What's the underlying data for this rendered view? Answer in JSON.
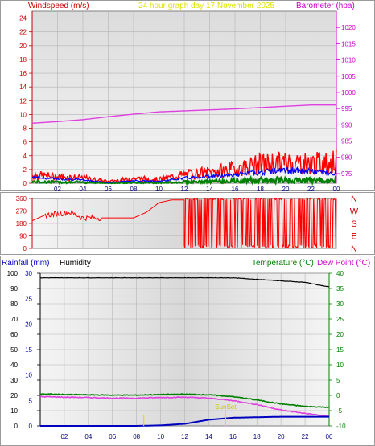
{
  "header": {
    "left": "Windspeed (m/s)",
    "center": "24 hour graph day   17 November 2025",
    "right": "Barometer (hpa)"
  },
  "colors": {
    "wind": "#ff0000",
    "gust": "#ff0000",
    "avgwind": "#0000ff",
    "baro": "#e040e0",
    "dir": "#ff0000",
    "hum": "#000000",
    "temp": "#008000",
    "dew": "#e040e0",
    "rain": "#0000c0",
    "sun": "#e0e000",
    "header_left": "#cc0000",
    "header_center": "#e0e000",
    "header_right": "#cc00cc",
    "rain_label": "#0000c0",
    "hum_label": "#000000",
    "temp_label": "#008000",
    "dew_label": "#cc00cc"
  },
  "time_ticks": [
    "02",
    "04",
    "06",
    "08",
    "10",
    "12",
    "14",
    "16",
    "18",
    "20",
    "22",
    "00"
  ],
  "compass": [
    "N",
    "W",
    "S",
    "E",
    "N"
  ],
  "bottom_labels": {
    "rainfall": "Rainfall (mm)",
    "humidity": "Humidity",
    "temperature": "Temperature (°C)",
    "dewpoint": "Dew Point (°C)",
    "sunset": "SunSet"
  },
  "chart_data": [
    {
      "type": "line",
      "title": "24 hour graph day   17 November 2025",
      "ylabel": "Windspeed (m/s)",
      "y2label": "Barometer (hpa)",
      "ylim": [
        0,
        25
      ],
      "yticks": [
        "0",
        "2",
        "4",
        "6",
        "8",
        "10",
        "12",
        "14",
        "16",
        "18",
        "20",
        "22",
        "24"
      ],
      "y2lim": [
        972,
        1025
      ],
      "y2ticks": [
        "975",
        "980",
        "985",
        "990",
        "995",
        "1000",
        "1005",
        "1010",
        "1015",
        "1020"
      ],
      "x_hours": [
        0,
        2,
        4,
        6,
        8,
        10,
        12,
        14,
        16,
        18,
        20,
        22,
        24
      ],
      "series": [
        {
          "values_wind_gust": [
            1.5,
            1.2,
            1.0,
            0.3,
            0.9,
            0.7,
            1.6,
            2.0,
            2.6,
            3.5,
            3.8,
            3.6,
            3.9
          ]
        },
        {
          "values_wind_avg": [
            0.9,
            0.7,
            0.5,
            0.1,
            0.4,
            0.3,
            0.8,
            1.1,
            1.3,
            1.7,
            2.0,
            1.8,
            1.6
          ]
        },
        {
          "values_baro": [
            990.5,
            991.0,
            991.6,
            992.5,
            993.3,
            994.0,
            994.3,
            994.6,
            994.9,
            995.3,
            995.7,
            996.1,
            996.1
          ]
        }
      ],
      "grid": true
    },
    {
      "type": "scatter",
      "title": "",
      "ylabel": "",
      "ylim": [
        0,
        360
      ],
      "yticks": [
        "0",
        "90",
        "180",
        "270",
        "360"
      ],
      "x_hours": [
        0,
        1,
        2,
        3,
        4,
        5,
        6,
        7,
        8,
        9,
        10,
        11,
        12
      ],
      "series": [
        {
          "values_wind_dir": [
            200,
            240,
            250,
            260,
            220,
            220,
            220,
            220,
            220,
            260,
            330,
            350,
            350
          ]
        }
      ],
      "note_after_12h": "direction varies between 0 and 360",
      "grid": true
    },
    {
      "type": "line",
      "title": "",
      "ylabel_left": "Rainfall (mm)",
      "ylabel_left2": "Humidity",
      "ylabel_right": "Temperature (°C)",
      "ylabel_right2": "Dew Point (°C)",
      "rain_ticks": [
        "0",
        "5",
        "10",
        "15",
        "20",
        "25",
        "30"
      ],
      "rain_lim": [
        0,
        30
      ],
      "hum_ticks": [
        "0",
        "10",
        "20",
        "30",
        "40",
        "50",
        "60",
        "70",
        "80",
        "90",
        "100"
      ],
      "hum_lim": [
        0,
        100
      ],
      "temp_ticks": [
        "-10",
        "-5",
        "0",
        "5",
        "10",
        "15",
        "20",
        "25",
        "30",
        "35",
        "40"
      ],
      "temp_lim": [
        -10,
        40
      ],
      "x_hours": [
        0,
        2,
        4,
        6,
        8,
        10,
        12,
        14,
        16,
        18,
        20,
        22,
        24
      ],
      "series": [
        {
          "values_humidity": [
            97,
            97,
            97,
            97,
            97,
            97,
            97,
            97,
            97,
            96,
            95,
            94,
            91
          ]
        },
        {
          "values_temperature": [
            0.5,
            0.3,
            0.2,
            0.1,
            0.1,
            0.3,
            0.4,
            0.2,
            -0.4,
            -1.5,
            -2.8,
            -3.6,
            -3.9
          ]
        },
        {
          "values_dewpoint": [
            -0.4,
            -0.6,
            -0.7,
            -0.9,
            -0.9,
            -0.7,
            -0.6,
            -0.9,
            -1.7,
            -3.0,
            -4.8,
            -5.9,
            -6.9
          ]
        },
        {
          "values_rainfall": [
            0.0,
            0.0,
            0.0,
            0.0,
            0.0,
            0.1,
            0.4,
            1.2,
            1.6,
            1.7,
            1.8,
            1.8,
            1.8
          ]
        }
      ],
      "sunset_hour": 15.4,
      "sunrise_hour": 8.6,
      "grid": true
    }
  ]
}
